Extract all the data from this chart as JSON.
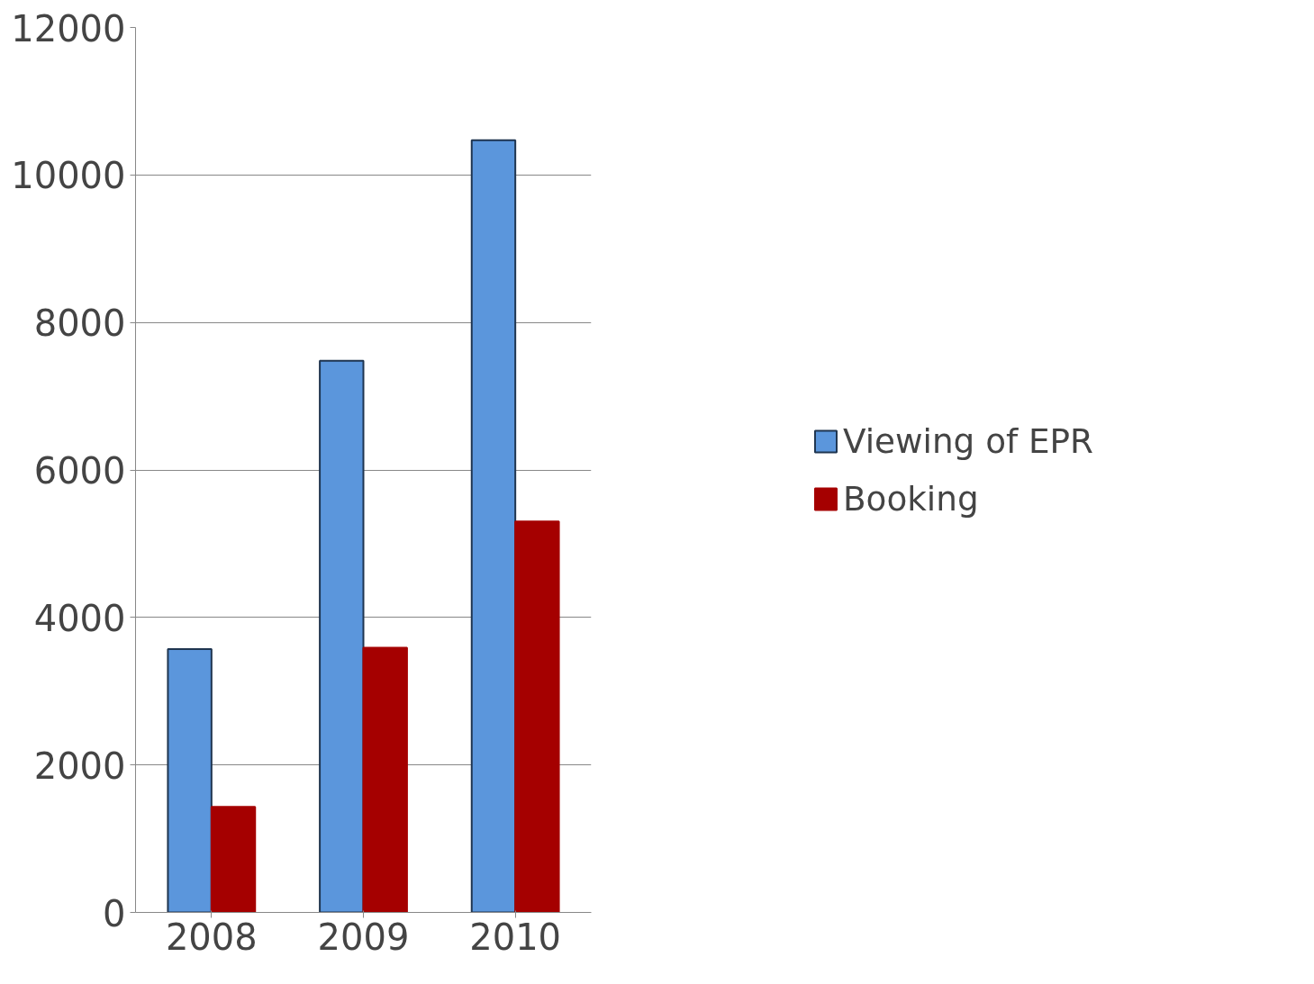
{
  "chart_data": {
    "type": "bar",
    "categories": [
      "2008",
      "2009",
      "2010"
    ],
    "series": [
      {
        "name": "Viewing of EPR",
        "color": "#5b96dc",
        "values": [
          3570,
          7480,
          10470
        ]
      },
      {
        "name": "Booking",
        "color": "#a50000",
        "values": [
          1430,
          3590,
          5300
        ]
      }
    ],
    "ylim": [
      0,
      12000
    ],
    "yticks": [
      0,
      2000,
      4000,
      6000,
      8000,
      10000,
      12000
    ],
    "grid": "y",
    "legend": "right"
  }
}
